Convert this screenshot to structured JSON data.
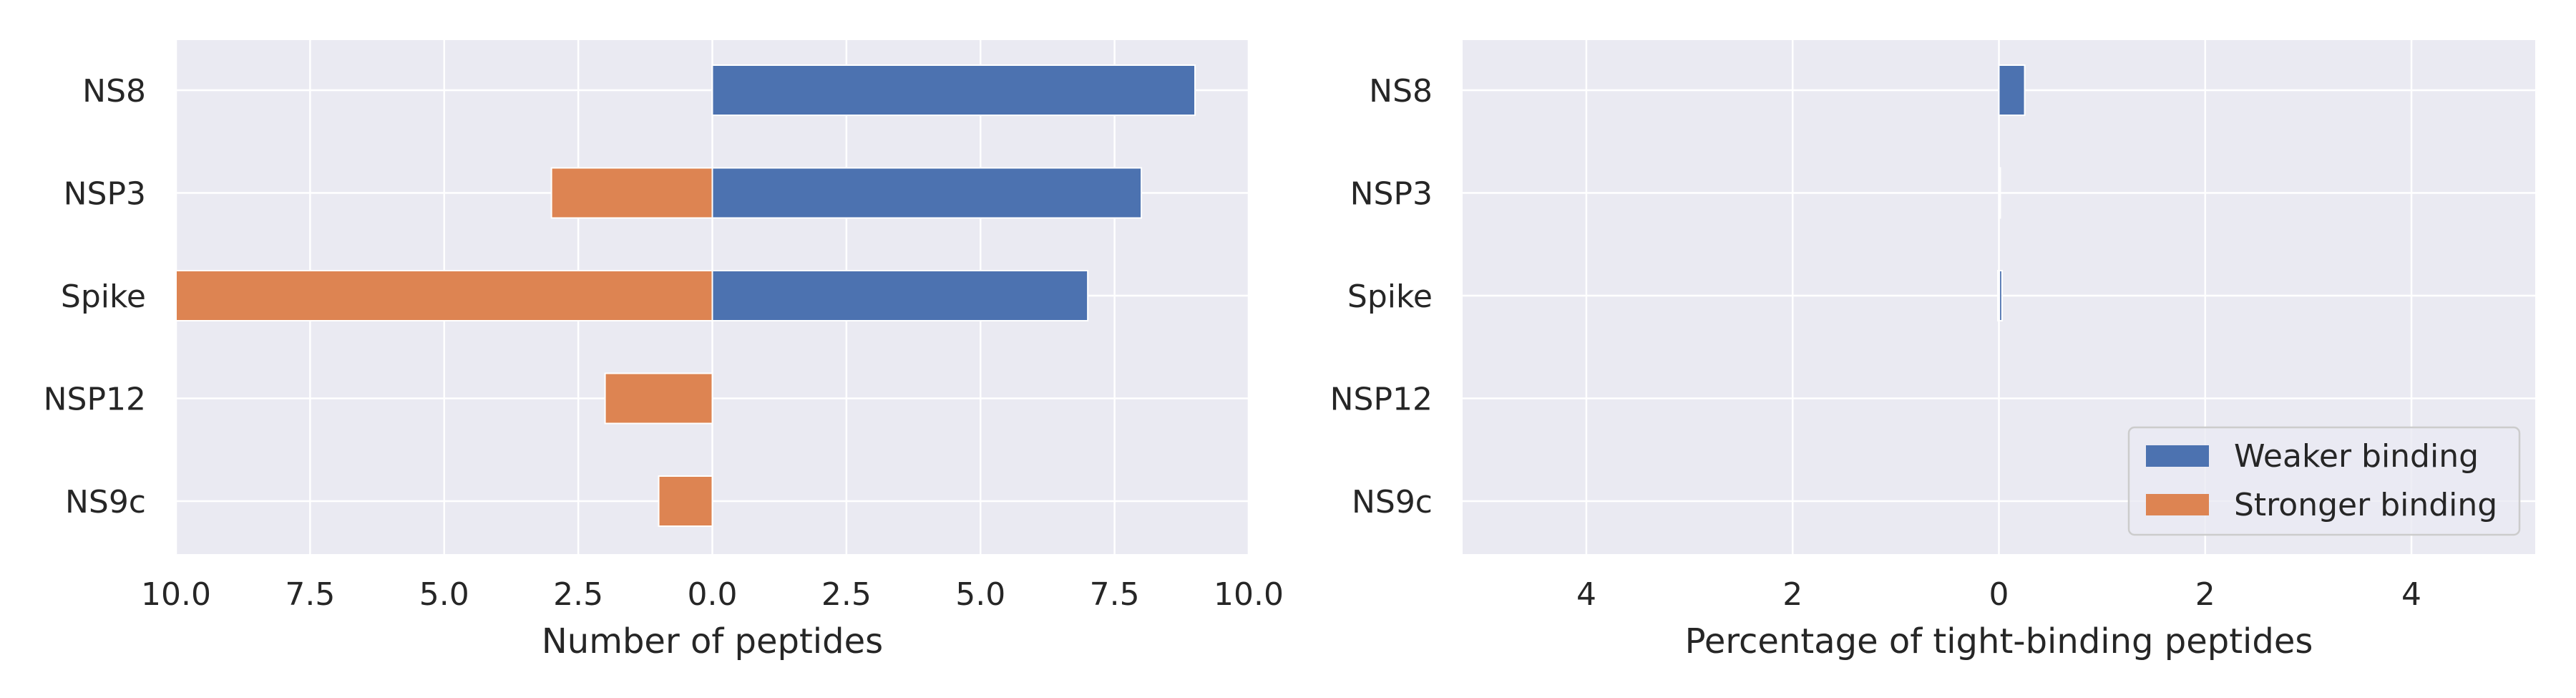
{
  "chart_data": [
    {
      "type": "bar",
      "orientation": "horizontal",
      "diverging": true,
      "categories": [
        "NS8",
        "NSP3",
        "Spike",
        "NSP12",
        "NS9c"
      ],
      "series": [
        {
          "name": "Weaker binding",
          "values": [
            9,
            8,
            7,
            0,
            0
          ]
        },
        {
          "name": "Stronger binding",
          "values": [
            0,
            3,
            10,
            2,
            1
          ]
        }
      ],
      "xlabel": "Number of peptides",
      "xlim": [
        -10,
        10
      ],
      "xticks": [
        "10.0",
        "7.5",
        "5.0",
        "2.5",
        "0.0",
        "2.5",
        "5.0",
        "7.5",
        "10.0"
      ],
      "grid": true
    },
    {
      "type": "bar",
      "orientation": "horizontal",
      "diverging": true,
      "categories": [
        "NS8",
        "NSP3",
        "Spike",
        "NSP12",
        "NS9c"
      ],
      "series": [
        {
          "name": "Weaker binding",
          "values": [
            0.25,
            0.01,
            0.03,
            0,
            0
          ]
        },
        {
          "name": "Stronger binding",
          "values": [
            0,
            0,
            0.01,
            0,
            0
          ]
        }
      ],
      "xlabel": "Percentage of tight-binding peptides",
      "xlim": [
        -5.2,
        5.2
      ],
      "xticks": [
        "4",
        "2",
        "0",
        "2",
        "4"
      ],
      "legend": {
        "placement": "lower-right",
        "entries": [
          "Weaker binding",
          "Stronger binding"
        ]
      },
      "grid": true
    }
  ],
  "colors": {
    "weaker": "#4c72b0",
    "stronger": "#dd8452",
    "plot_bg": "#eaeaf2",
    "grid": "#ffffff",
    "text": "#262626"
  }
}
